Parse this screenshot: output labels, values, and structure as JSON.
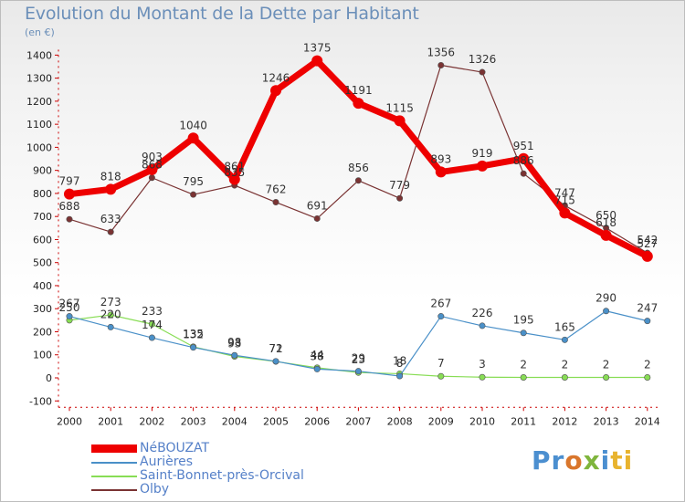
{
  "chart_data": {
    "type": "line",
    "title": "Evolution du Montant de la Dette par Habitant",
    "subtitle": "(en €)",
    "xlabel": "",
    "ylabel": "",
    "categories": [
      "2000",
      "2001",
      "2002",
      "2003",
      "2004",
      "2005",
      "2006",
      "2007",
      "2008",
      "2009",
      "2010",
      "2011",
      "2012",
      "2013",
      "2014"
    ],
    "ylim": [
      -100,
      1400
    ],
    "yticks": [
      -100,
      0,
      100,
      200,
      300,
      400,
      500,
      600,
      700,
      800,
      900,
      1000,
      1100,
      1200,
      1300,
      1400
    ],
    "grid": false,
    "legend_position": "bottom-left",
    "series": [
      {
        "name": "NéBOUZAT",
        "color": "#ee0000",
        "values": [
          797,
          818,
          903,
          1040,
          861,
          1246,
          1375,
          1191,
          1115,
          893,
          919,
          951,
          715,
          618,
          527
        ]
      },
      {
        "name": "Aurières",
        "color": "#4a90c8",
        "values": [
          267,
          220,
          174,
          132,
          98,
          72,
          38,
          29,
          8,
          267,
          226,
          195,
          165,
          290,
          247
        ]
      },
      {
        "name": "Saint-Bonnet-près-Orcival",
        "color": "#88dd55",
        "values": [
          250,
          273,
          233,
          135,
          93,
          71,
          44,
          23,
          18,
          7,
          3,
          2,
          2,
          2,
          2
        ]
      },
      {
        "name": "Olby",
        "color": "#7a3333",
        "values": [
          688,
          633,
          868,
          795,
          835,
          762,
          691,
          856,
          779,
          1356,
          1326,
          886,
          747,
          650,
          542
        ]
      }
    ]
  },
  "branding": {
    "name": "Proxiti",
    "letters": [
      "Pr",
      "o",
      "x",
      "i",
      "ti"
    ]
  }
}
